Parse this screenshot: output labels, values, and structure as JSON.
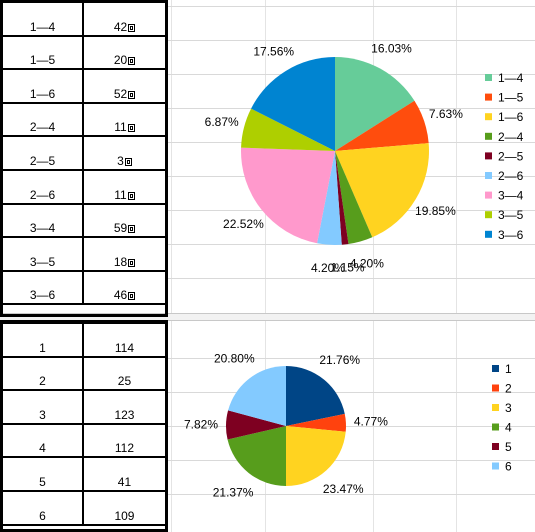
{
  "table1": {
    "rows": [
      {
        "pair": "1—4",
        "count": "42"
      },
      {
        "pair": "1—5",
        "count": "20"
      },
      {
        "pair": "1—6",
        "count": "52"
      },
      {
        "pair": "2—4",
        "count": "11"
      },
      {
        "pair": "2—5",
        "count": "3"
      },
      {
        "pair": "2—6",
        "count": "11"
      },
      {
        "pair": "3—4",
        "count": "59"
      },
      {
        "pair": "3—5",
        "count": "18"
      },
      {
        "pair": "3—6",
        "count": "46"
      }
    ]
  },
  "table2": {
    "rows": [
      {
        "label": "1",
        "value": "114"
      },
      {
        "label": "2",
        "value": "25"
      },
      {
        "label": "3",
        "value": "123"
      },
      {
        "label": "4",
        "value": "112"
      },
      {
        "label": "5",
        "value": "41"
      },
      {
        "label": "6",
        "value": "109"
      }
    ]
  },
  "chart_data": [
    {
      "type": "pie",
      "categories": [
        "1—4",
        "1—5",
        "1—6",
        "2—4",
        "2—5",
        "2—6",
        "3—4",
        "3—5",
        "3—6"
      ],
      "values": [
        42,
        20,
        52,
        11,
        3,
        11,
        59,
        18,
        46
      ],
      "percent_labels": [
        "16.03%",
        "7.63%",
        "19.85%",
        "4.20%",
        "1.15%",
        "4.20%",
        "22.52%",
        "6.87%",
        "17.56%"
      ],
      "colors": [
        "#66cc99",
        "#ff4d0d",
        "#ffd320",
        "#579d1c",
        "#7e0021",
        "#83caff",
        "#ff99cc",
        "#aecf00",
        "#0084d1"
      ],
      "legend": "right"
    },
    {
      "type": "pie",
      "categories": [
        "1",
        "2",
        "3",
        "4",
        "5",
        "6"
      ],
      "values": [
        114,
        25,
        123,
        112,
        41,
        109
      ],
      "percent_labels": [
        "21.76%",
        "4.77%",
        "23.47%",
        "21.37%",
        "7.82%",
        "20.80%"
      ],
      "colors": [
        "#004586",
        "#ff420e",
        "#ffd320",
        "#579d1c",
        "#7e0021",
        "#83caff"
      ],
      "legend": "right"
    }
  ]
}
